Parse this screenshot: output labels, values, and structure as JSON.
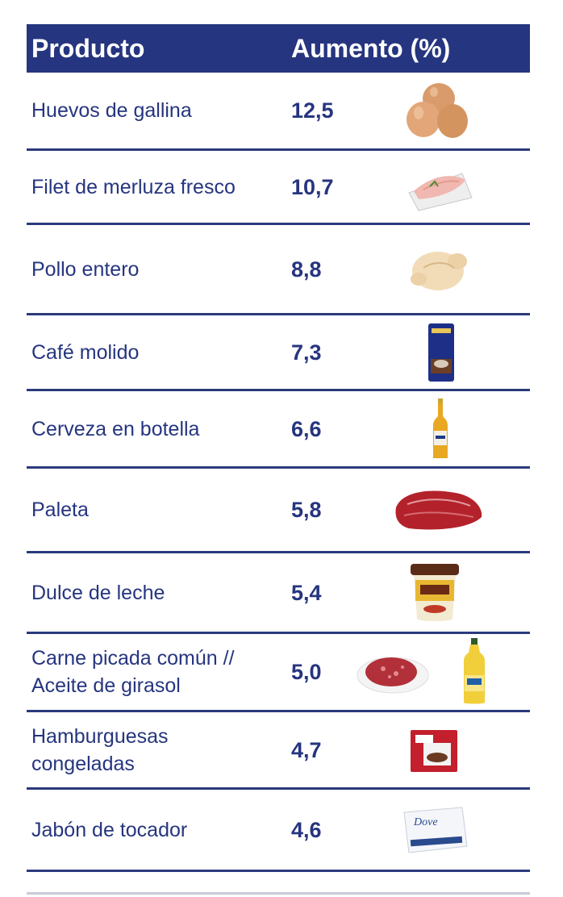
{
  "header": {
    "product_label": "Producto",
    "increase_label": "Aumento (%)"
  },
  "rows": [
    {
      "product": "Huevos de gallina",
      "value": "12,5",
      "icon": "eggs-icon"
    },
    {
      "product": "Filet de merluza fresco",
      "value": "10,7",
      "icon": "fish-fillet-icon"
    },
    {
      "product": "Pollo entero",
      "value": "8,8",
      "icon": "whole-chicken-icon"
    },
    {
      "product": "Café molido",
      "value": "7,3",
      "icon": "coffee-package-icon"
    },
    {
      "product": "Cerveza en botella",
      "value": "6,6",
      "icon": "beer-bottle-icon"
    },
    {
      "product": "Paleta",
      "value": "5,8",
      "icon": "beef-cut-icon"
    },
    {
      "product": "Dulce de leche",
      "value": "5,4",
      "icon": "dulce-de-leche-jar-icon"
    },
    {
      "product": "Carne picada común //",
      "product_line2": "Aceite de girasol",
      "value": "5,0",
      "icon": "ground-beef-icon",
      "icon2": "oil-bottle-icon"
    },
    {
      "product": "Hamburguesas",
      "product_line2": "congeladas",
      "value": "4,7",
      "icon": "burger-box-icon"
    },
    {
      "product": "Jabón de tocador",
      "value": "4,6",
      "icon": "soap-bar-icon"
    }
  ],
  "colors": {
    "header_bg": "#26357f",
    "text": "#26357f",
    "rule": "#2a3a7c"
  }
}
